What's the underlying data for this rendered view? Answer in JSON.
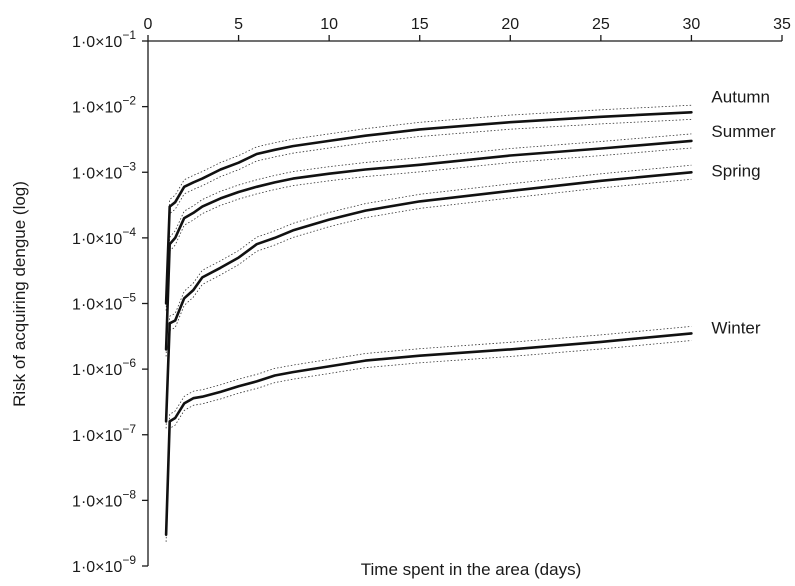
{
  "chart_data": {
    "type": "line",
    "xlabel": "Time spent in the area (days)",
    "ylabel": "Risk of acquiring dengue (log)",
    "xlim": [
      0,
      35
    ],
    "ylim": [
      1e-09,
      0.1
    ],
    "y_scale": "log",
    "x_axis_position": "top",
    "grid": false,
    "x_ticks": [
      "0",
      "5",
      "10",
      "15",
      "20",
      "25",
      "30",
      "35"
    ],
    "y_ticks": [
      {
        "mantissa": "1·0×10",
        "exponent": "−1"
      },
      {
        "mantissa": "1·0×10",
        "exponent": "−2"
      },
      {
        "mantissa": "1·0×10",
        "exponent": "−3"
      },
      {
        "mantissa": "1·0×10",
        "exponent": "−4"
      },
      {
        "mantissa": "1·0×10",
        "exponent": "−5"
      },
      {
        "mantissa": "1·0×10",
        "exponent": "−6"
      },
      {
        "mantissa": "1·0×10",
        "exponent": "−7"
      },
      {
        "mantissa": "1·0×10",
        "exponent": "−8"
      },
      {
        "mantissa": "1·0×10",
        "exponent": "−9"
      }
    ],
    "series": [
      {
        "name": "Autumn",
        "x": [
          1,
          1.2,
          1.5,
          2,
          2.5,
          3,
          4,
          5,
          6,
          7,
          8,
          10,
          12,
          15,
          20,
          25,
          30
        ],
        "y": [
          1e-05,
          0.0003,
          0.00035,
          0.0006,
          0.0007,
          0.0008,
          0.0011,
          0.0014,
          0.0019,
          0.0022,
          0.0025,
          0.003,
          0.0036,
          0.0045,
          0.0058,
          0.007,
          0.0082
        ]
      },
      {
        "name": "Summer",
        "x": [
          1,
          1.2,
          1.5,
          2,
          2.5,
          3,
          4,
          5,
          6,
          7,
          8,
          10,
          12,
          15,
          20,
          25,
          30
        ],
        "y": [
          2e-06,
          8e-05,
          0.0001,
          0.0002,
          0.00024,
          0.0003,
          0.0004,
          0.0005,
          0.0006,
          0.0007,
          0.0008,
          0.00095,
          0.0011,
          0.0013,
          0.0018,
          0.0023,
          0.003
        ]
      },
      {
        "name": "Spring",
        "x": [
          1,
          1.2,
          1.5,
          2,
          2.5,
          3,
          4,
          5,
          6,
          7,
          8,
          10,
          12,
          15,
          20,
          25,
          30
        ],
        "y": [
          1.6e-07,
          5e-06,
          5.5e-06,
          1.2e-05,
          1.6e-05,
          2.5e-05,
          3.5e-05,
          5e-05,
          8e-05,
          0.0001,
          0.00013,
          0.00019,
          0.00026,
          0.00036,
          0.00052,
          0.00074,
          0.001
        ]
      },
      {
        "name": "Winter",
        "x": [
          1,
          1.2,
          1.5,
          2,
          2.5,
          3,
          4,
          5,
          6,
          7,
          8,
          10,
          12,
          15,
          20,
          25,
          30
        ],
        "y": [
          3e-09,
          1.6e-07,
          1.8e-07,
          3e-07,
          3.6e-07,
          3.8e-07,
          4.5e-07,
          5.5e-07,
          6.5e-07,
          8e-07,
          9e-07,
          1.1e-06,
          1.35e-06,
          1.6e-06,
          2e-06,
          2.6e-06,
          3.5e-06
        ]
      }
    ]
  }
}
